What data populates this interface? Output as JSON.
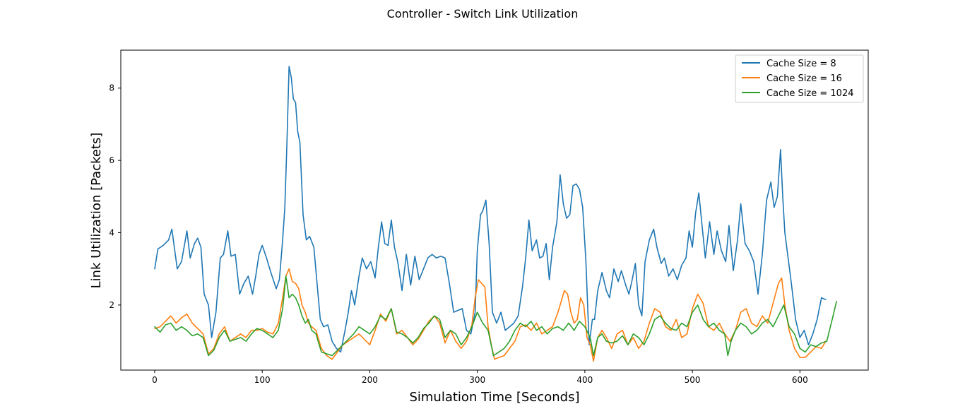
{
  "chart_data": {
    "type": "line",
    "title": "Controller - Switch Link Utilization",
    "xlabel": "Simulation Time [Seconds]",
    "ylabel": "Link Utilization [Packets]",
    "xlim": [
      -31.5,
      663.5
    ],
    "ylim": [
      0.2,
      9.05
    ],
    "xticks": [
      0,
      100,
      200,
      300,
      400,
      500,
      600
    ],
    "yticks": [
      2,
      4,
      6,
      8
    ],
    "grid": false,
    "legend_position": "top-right",
    "series": [
      {
        "name": "Cache Size = 8",
        "color": "#1f77b4",
        "x": [
          0,
          3,
          8,
          13,
          16,
          21,
          25,
          30,
          33,
          37,
          40,
          43,
          46,
          50,
          53,
          57,
          61,
          64,
          68,
          71,
          75,
          79,
          83,
          87,
          91,
          94,
          97,
          100,
          104,
          108,
          113,
          116,
          119,
          121,
          123,
          125,
          127,
          129,
          131,
          133,
          135,
          138,
          141,
          144,
          148,
          151,
          154,
          157,
          161,
          165,
          169,
          173,
          177,
          180,
          183,
          186,
          190,
          193,
          197,
          201,
          205,
          208,
          211,
          214,
          217,
          220,
          223,
          226,
          230,
          234,
          238,
          242,
          246,
          250,
          254,
          258,
          262,
          266,
          270,
          274,
          278,
          282,
          286,
          290,
          294,
          298,
          300,
          303,
          305,
          308,
          311,
          314,
          318,
          322,
          326,
          330,
          334,
          338,
          342,
          345,
          348,
          351,
          355,
          358,
          361,
          364,
          367,
          370,
          374,
          377,
          380,
          383,
          386,
          389,
          392,
          395,
          398,
          401,
          404,
          407,
          409,
          412,
          416,
          420,
          423,
          427,
          431,
          434,
          438,
          441,
          444,
          447,
          450,
          453,
          456,
          460,
          464,
          467,
          471,
          474,
          478,
          482,
          486,
          490,
          494,
          497,
          500,
          503,
          506,
          509,
          512,
          516,
          520,
          523,
          527,
          531,
          534,
          538,
          542,
          545,
          549,
          553,
          557,
          561,
          565,
          569,
          573,
          576,
          579,
          582,
          584,
          586,
          589,
          592,
          596,
          600,
          604,
          608,
          612,
          616,
          620,
          624
        ],
        "y": [
          3.0,
          3.55,
          3.65,
          3.8,
          4.1,
          3.0,
          3.2,
          4.05,
          3.3,
          3.7,
          3.85,
          3.6,
          2.3,
          2.0,
          1.1,
          1.8,
          3.3,
          3.4,
          4.05,
          3.35,
          3.4,
          2.3,
          2.6,
          2.8,
          2.3,
          2.8,
          3.4,
          3.65,
          3.3,
          2.9,
          2.45,
          2.7,
          3.8,
          4.7,
          6.5,
          8.6,
          8.3,
          7.7,
          7.6,
          6.8,
          6.5,
          4.5,
          3.8,
          3.9,
          3.6,
          2.6,
          1.6,
          1.4,
          1.45,
          1.0,
          0.8,
          0.7,
          1.3,
          1.8,
          2.4,
          2.0,
          2.8,
          3.3,
          3.0,
          3.2,
          2.75,
          3.6,
          4.3,
          3.7,
          3.65,
          4.35,
          3.6,
          3.2,
          2.4,
          3.4,
          2.55,
          3.35,
          2.7,
          3.0,
          3.3,
          3.4,
          3.3,
          3.35,
          3.3,
          2.6,
          1.8,
          1.85,
          1.9,
          1.3,
          1.2,
          1.8,
          3.5,
          4.5,
          4.6,
          4.9,
          3.7,
          1.8,
          1.5,
          1.8,
          1.3,
          1.4,
          1.5,
          1.7,
          2.5,
          3.3,
          4.35,
          3.5,
          3.8,
          3.3,
          3.35,
          3.7,
          2.7,
          3.6,
          4.3,
          5.6,
          4.8,
          4.4,
          4.5,
          5.3,
          5.35,
          5.2,
          4.7,
          3.2,
          0.9,
          1.6,
          1.6,
          2.4,
          2.9,
          2.4,
          2.2,
          3.0,
          2.65,
          2.95,
          2.55,
          2.3,
          2.7,
          3.15,
          2.0,
          1.7,
          3.2,
          3.8,
          4.1,
          3.6,
          3.15,
          3.3,
          2.8,
          3.0,
          2.7,
          3.1,
          3.3,
          4.05,
          3.6,
          4.55,
          5.1,
          4.2,
          3.3,
          4.3,
          3.4,
          4.05,
          3.5,
          3.2,
          4.2,
          2.95,
          3.8,
          4.8,
          3.7,
          3.5,
          3.2,
          2.3,
          3.4,
          4.9,
          5.4,
          4.7,
          5.0,
          6.3,
          5.0,
          4.0,
          3.3,
          2.6,
          1.6,
          1.1,
          1.3,
          0.9,
          1.2,
          1.6,
          2.2,
          2.15
        ]
      },
      {
        "name": "Cache Size = 16",
        "color": "#ff7f0e",
        "x": [
          0,
          5,
          10,
          15,
          20,
          25,
          30,
          35,
          40,
          45,
          50,
          55,
          60,
          65,
          70,
          75,
          80,
          85,
          90,
          95,
          100,
          105,
          110,
          115,
          119,
          122,
          125,
          128,
          131,
          134,
          137,
          140,
          143,
          146,
          150,
          155,
          160,
          165,
          170,
          175,
          180,
          185,
          190,
          195,
          200,
          205,
          210,
          215,
          220,
          225,
          230,
          235,
          240,
          245,
          250,
          255,
          260,
          265,
          270,
          275,
          280,
          285,
          290,
          295,
          298,
          301,
          304,
          307,
          310,
          313,
          316,
          320,
          325,
          330,
          335,
          340,
          345,
          350,
          355,
          360,
          365,
          370,
          375,
          378,
          381,
          384,
          387,
          390,
          393,
          396,
          399,
          402,
          405,
          408,
          412,
          416,
          420,
          425,
          430,
          435,
          440,
          445,
          450,
          455,
          460,
          465,
          470,
          475,
          480,
          485,
          490,
          495,
          500,
          505,
          510,
          515,
          520,
          525,
          530,
          535,
          540,
          545,
          550,
          555,
          560,
          565,
          570,
          575,
          580,
          583,
          586,
          590,
          595,
          600,
          605,
          610,
          615,
          620,
          624
        ],
        "y": [
          1.35,
          1.4,
          1.55,
          1.7,
          1.5,
          1.65,
          1.75,
          1.5,
          1.35,
          1.2,
          0.65,
          0.8,
          1.2,
          1.4,
          1.0,
          1.1,
          1.2,
          1.1,
          1.3,
          1.3,
          1.35,
          1.25,
          1.2,
          1.5,
          2.2,
          2.8,
          3.0,
          2.65,
          2.6,
          2.45,
          2.0,
          1.8,
          1.5,
          1.4,
          1.3,
          0.8,
          0.6,
          0.5,
          0.7,
          0.9,
          1.0,
          1.1,
          1.2,
          1.05,
          0.9,
          1.3,
          1.75,
          1.55,
          1.9,
          1.2,
          1.3,
          1.1,
          0.9,
          1.05,
          1.3,
          1.55,
          1.7,
          1.5,
          0.95,
          1.3,
          1.0,
          0.8,
          1.0,
          1.45,
          2.2,
          2.7,
          2.6,
          2.5,
          1.4,
          0.9,
          0.5,
          0.55,
          0.6,
          0.8,
          1.0,
          1.4,
          1.45,
          1.3,
          1.5,
          1.2,
          1.3,
          1.4,
          1.8,
          2.1,
          2.4,
          2.3,
          1.8,
          1.5,
          1.6,
          2.2,
          2.0,
          1.1,
          0.9,
          0.45,
          1.1,
          1.3,
          1.1,
          0.8,
          1.2,
          1.3,
          0.9,
          1.1,
          0.8,
          1.0,
          1.5,
          1.9,
          1.8,
          1.4,
          1.3,
          1.6,
          1.1,
          1.2,
          1.9,
          2.3,
          2.05,
          1.4,
          1.3,
          1.5,
          1.2,
          1.0,
          1.3,
          1.8,
          1.9,
          1.5,
          1.4,
          1.7,
          1.5,
          2.05,
          2.6,
          2.75,
          2.0,
          1.3,
          0.8,
          0.55,
          0.55,
          0.7,
          0.85,
          0.8,
          1.0
        ]
      },
      {
        "name": "Cache Size = 1024",
        "color": "#2ca02c",
        "x": [
          0,
          5,
          10,
          15,
          20,
          25,
          30,
          35,
          40,
          45,
          50,
          55,
          60,
          65,
          70,
          75,
          80,
          85,
          90,
          95,
          100,
          105,
          110,
          115,
          119,
          122,
          125,
          128,
          131,
          134,
          137,
          140,
          143,
          146,
          150,
          155,
          160,
          165,
          170,
          175,
          180,
          185,
          190,
          195,
          200,
          205,
          210,
          215,
          220,
          225,
          230,
          235,
          240,
          245,
          250,
          255,
          260,
          265,
          270,
          275,
          280,
          285,
          290,
          295,
          300,
          305,
          310,
          315,
          320,
          325,
          330,
          335,
          340,
          345,
          350,
          355,
          360,
          365,
          370,
          375,
          380,
          385,
          390,
          395,
          400,
          405,
          408,
          412,
          416,
          420,
          425,
          430,
          435,
          440,
          445,
          450,
          455,
          460,
          465,
          470,
          475,
          480,
          485,
          490,
          495,
          500,
          505,
          510,
          515,
          520,
          525,
          530,
          533,
          536,
          540,
          545,
          550,
          555,
          560,
          565,
          570,
          575,
          580,
          585,
          590,
          595,
          600,
          605,
          610,
          615,
          620,
          625,
          630,
          634
        ],
        "y": [
          1.4,
          1.25,
          1.45,
          1.5,
          1.3,
          1.4,
          1.3,
          1.15,
          1.2,
          1.1,
          0.6,
          0.75,
          1.1,
          1.3,
          1.0,
          1.05,
          1.1,
          1.0,
          1.2,
          1.35,
          1.3,
          1.2,
          1.1,
          1.3,
          1.9,
          2.8,
          2.2,
          2.3,
          2.2,
          2.0,
          1.7,
          1.5,
          1.6,
          1.3,
          1.2,
          0.7,
          0.65,
          0.6,
          0.75,
          0.9,
          1.05,
          1.2,
          1.4,
          1.3,
          1.2,
          1.4,
          1.7,
          1.6,
          1.9,
          1.25,
          1.2,
          1.1,
          0.95,
          1.1,
          1.35,
          1.5,
          1.7,
          1.6,
          1.1,
          1.3,
          1.2,
          0.9,
          1.1,
          1.4,
          1.8,
          1.5,
          1.3,
          0.6,
          0.7,
          0.8,
          1.0,
          1.3,
          1.5,
          1.4,
          1.55,
          1.3,
          1.4,
          1.2,
          1.35,
          1.4,
          1.3,
          1.5,
          1.3,
          1.55,
          1.4,
          1.1,
          0.6,
          1.1,
          1.2,
          1.0,
          0.95,
          1.0,
          1.15,
          0.9,
          1.2,
          1.1,
          0.9,
          1.2,
          1.6,
          1.7,
          1.5,
          1.35,
          1.3,
          1.5,
          1.4,
          1.8,
          2.0,
          1.6,
          1.4,
          1.5,
          1.3,
          1.2,
          0.6,
          1.0,
          1.3,
          1.5,
          1.4,
          1.2,
          1.3,
          1.5,
          1.6,
          1.4,
          1.7,
          2.0,
          1.4,
          1.2,
          0.8,
          0.7,
          0.9,
          0.85,
          0.95,
          1.0,
          1.6,
          2.1
        ]
      }
    ]
  }
}
